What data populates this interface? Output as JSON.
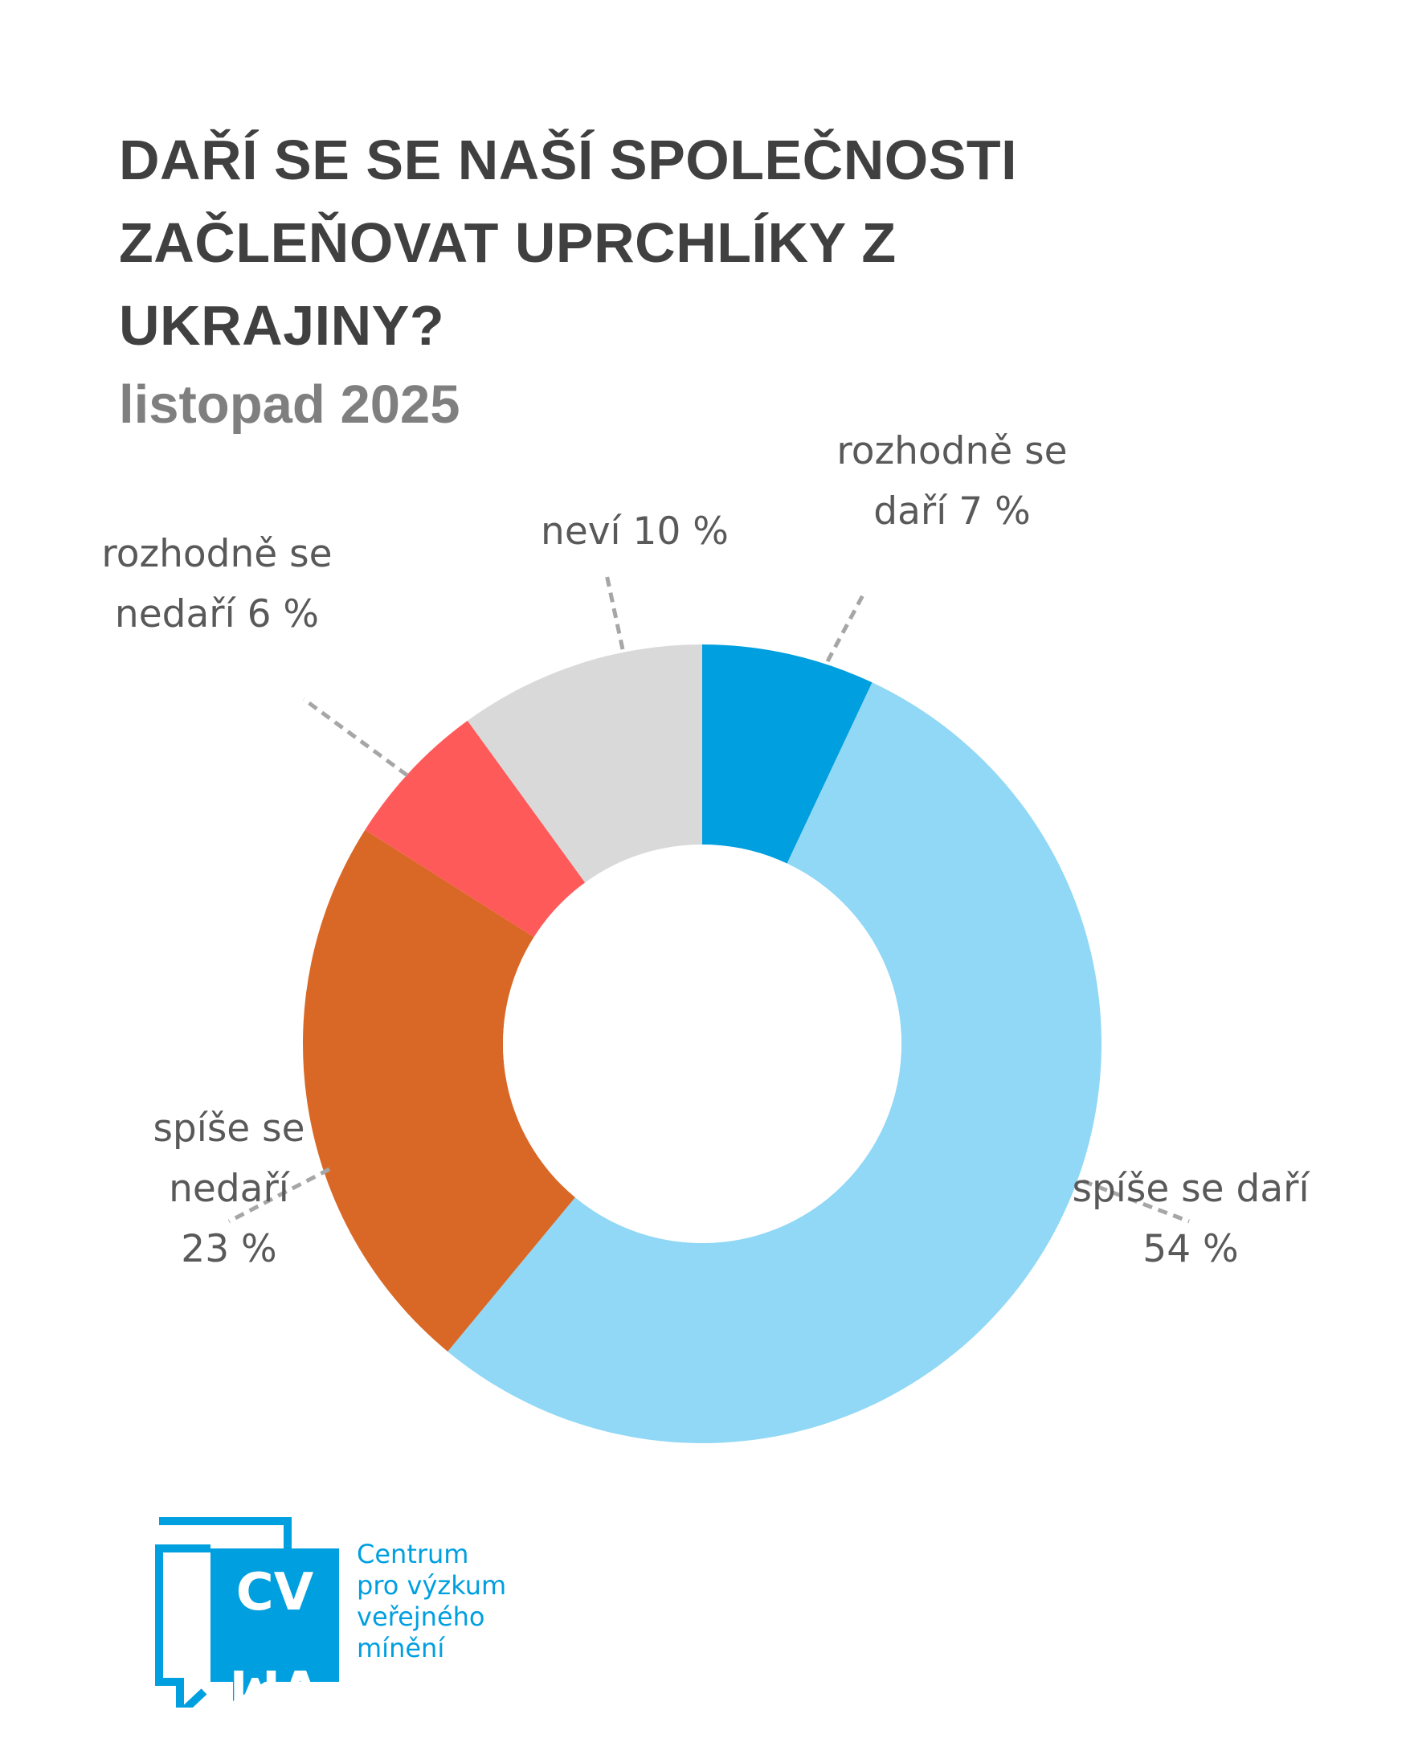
{
  "title": {
    "lines": [
      "DAŘÍ SE SE NAŠÍ SPOLEČNOSTI",
      "ZAČLEŇOVAT UPRCHLÍKY Z",
      "UKRAJINY?"
    ],
    "subtitle": "listopad 2025"
  },
  "chart_data": {
    "type": "pie",
    "variant": "donut",
    "title": "DAŘÍ SE SE NAŠÍ SPOLEČNOSTI ZAČLEŇOVAT UPRCHLÍKY Z UKRAJINY?",
    "subtitle": "listopad 2025",
    "unit": "%",
    "slices": [
      {
        "name": "rozhodně se daří",
        "value": 7,
        "color": "#009fdf",
        "label_lines": [
          "rozhodně se",
          "daří 7 %"
        ]
      },
      {
        "name": "spíše se daří",
        "value": 54,
        "color": "#90d8f6",
        "label_lines": [
          "spíše se daří",
          "54 %"
        ]
      },
      {
        "name": "spíše se nedaří",
        "value": 23,
        "color": "#d96826",
        "label_lines": [
          "spíše se",
          "nedaří",
          "23 %"
        ]
      },
      {
        "name": "rozhodně se nedaří",
        "value": 6,
        "color": "#ff5a5a",
        "label_lines": [
          "rozhodně se",
          "nedaří 6 %"
        ]
      },
      {
        "name": "neví",
        "value": 10,
        "color": "#d9d9d9",
        "label_lines": [
          "neví 10 %"
        ]
      }
    ],
    "legend": "none"
  },
  "logo": {
    "mark_top": "CV",
    "mark_bottom": "VM",
    "text_lines": [
      "Centrum",
      "pro výzkum",
      "veřejného",
      "mínění"
    ],
    "color": "#009fdf"
  }
}
